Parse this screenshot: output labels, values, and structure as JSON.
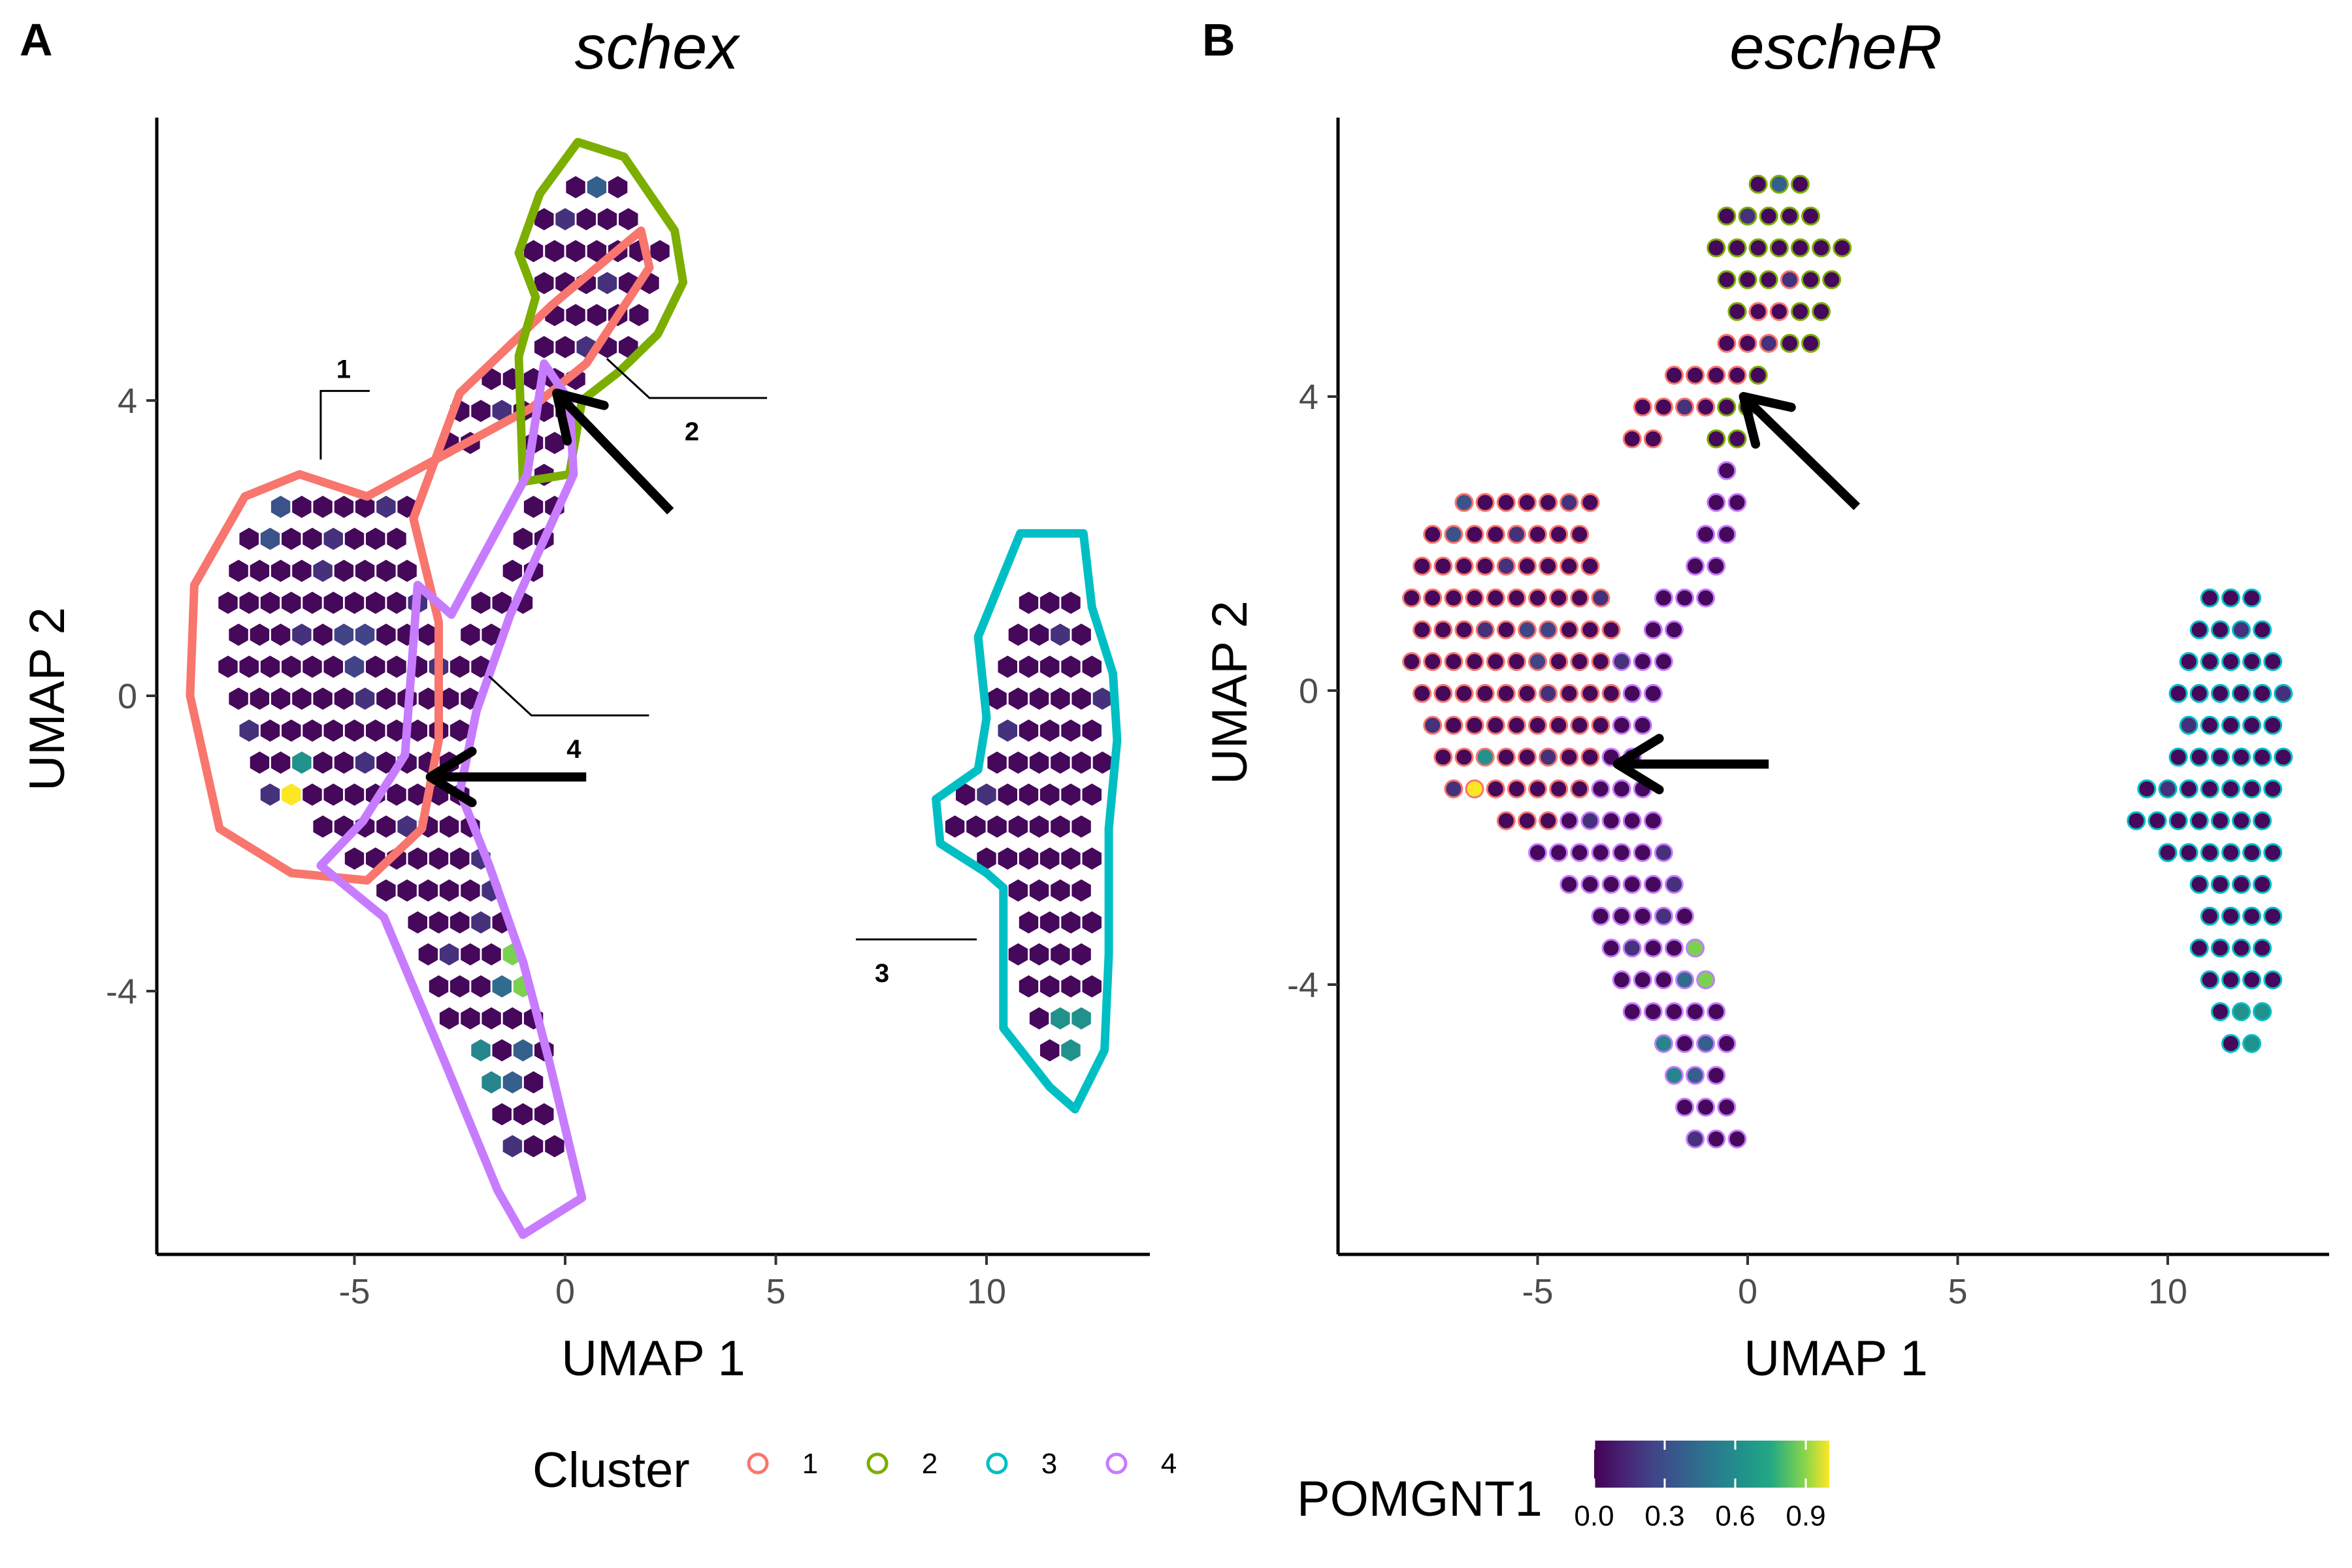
{
  "panels": [
    {
      "letter": "A",
      "title": "schex",
      "style": "hex"
    },
    {
      "letter": "B",
      "title": "escheR",
      "style": "dots"
    }
  ],
  "chart_data": {
    "type": "scatter",
    "description_type": "UMAP embedding colored by expression with cluster outlines",
    "xlabel": "UMAP 1",
    "ylabel": "UMAP 2",
    "xlim": [
      -9.5,
      14
    ],
    "ylim": [
      -7.5,
      7.5
    ],
    "x_ticks": [
      -5,
      0,
      5,
      10
    ],
    "y_ticks": [
      -4,
      0,
      4
    ],
    "x_tick_labels": [
      "-5",
      "0",
      "5",
      "10"
    ],
    "y_tick_labels": [
      "-4",
      "0",
      "4"
    ],
    "grid": false,
    "color_legend": {
      "title": "POMGNT1",
      "colormap": "viridis",
      "range": [
        0.0,
        1.0
      ],
      "tick_values": [
        0.0,
        0.3,
        0.6,
        0.9
      ],
      "tick_labels": [
        "0.0",
        "0.3",
        "0.6",
        "0.9"
      ]
    },
    "cluster_legend": {
      "title": "Cluster",
      "entries": [
        {
          "label": "1",
          "color": "#F8766D"
        },
        {
          "label": "2",
          "color": "#7CAE00"
        },
        {
          "label": "3",
          "color": "#00BFC4"
        },
        {
          "label": "4",
          "color": "#C77CFF"
        }
      ],
      "position": "bottom"
    },
    "clusters": [
      {
        "label": "1",
        "color": "#F8766D",
        "hull": [
          [
            -8.8,
            1.5
          ],
          [
            -8.9,
            0.0
          ],
          [
            -8.2,
            -1.8
          ],
          [
            -6.5,
            -2.4
          ],
          [
            -4.7,
            -2.5
          ],
          [
            -3.4,
            -1.8
          ],
          [
            -3.0,
            -0.6
          ],
          [
            -3.0,
            1.0
          ],
          [
            -3.6,
            2.4
          ],
          [
            -2.5,
            4.1
          ],
          [
            -0.3,
            5.3
          ],
          [
            1.8,
            6.3
          ],
          [
            2.0,
            5.8
          ],
          [
            0.5,
            4.5
          ],
          [
            -0.8,
            3.9
          ],
          [
            -4.7,
            2.7
          ],
          [
            -6.3,
            3.0
          ],
          [
            -7.6,
            2.7
          ]
        ],
        "label_anchor": [
          -5.8,
          3.2
        ],
        "callout_offset": "top"
      },
      {
        "label": "2",
        "color": "#7CAE00",
        "hull": [
          [
            -0.6,
            6.8
          ],
          [
            0.3,
            7.5
          ],
          [
            1.4,
            7.3
          ],
          [
            2.6,
            6.3
          ],
          [
            2.8,
            5.6
          ],
          [
            2.2,
            4.9
          ],
          [
            1.3,
            4.4
          ],
          [
            0.4,
            4.0
          ],
          [
            0.1,
            3.0
          ],
          [
            -1.0,
            2.9
          ],
          [
            -1.1,
            4.6
          ],
          [
            -0.7,
            5.4
          ],
          [
            -1.1,
            6.0
          ]
        ],
        "label_anchor": [
          2.0,
          4.3
        ],
        "callout_offset": "right"
      },
      {
        "label": "3",
        "color": "#00BFC4",
        "hull": [
          [
            9.8,
            0.8
          ],
          [
            10.8,
            2.2
          ],
          [
            12.3,
            2.2
          ],
          [
            12.5,
            1.2
          ],
          [
            13.0,
            0.3
          ],
          [
            13.1,
            -0.6
          ],
          [
            12.9,
            -1.8
          ],
          [
            12.9,
            -3.5
          ],
          [
            12.8,
            -4.8
          ],
          [
            12.1,
            -5.6
          ],
          [
            11.5,
            -5.3
          ],
          [
            10.4,
            -4.5
          ],
          [
            10.4,
            -2.6
          ],
          [
            10.0,
            -2.4
          ],
          [
            8.9,
            -2.0
          ],
          [
            8.8,
            -1.4
          ],
          [
            9.8,
            -1.0
          ],
          [
            10.0,
            -0.3
          ]
        ],
        "label_anchor": [
          10.0,
          -3.3
        ],
        "callout_offset": "left"
      },
      {
        "label": "4",
        "color": "#C77CFF",
        "hull": [
          [
            -0.9,
            3.0
          ],
          [
            -0.5,
            4.5
          ],
          [
            0.1,
            4.0
          ],
          [
            0.2,
            3.0
          ],
          [
            -1.3,
            1.1
          ],
          [
            -2.1,
            -0.2
          ],
          [
            -2.5,
            -1.3
          ],
          [
            -1.8,
            -2.3
          ],
          [
            -1.0,
            -3.6
          ],
          [
            -0.4,
            -4.9
          ],
          [
            0.4,
            -6.8
          ],
          [
            -1.0,
            -7.3
          ],
          [
            -1.6,
            -6.7
          ],
          [
            -2.9,
            -4.9
          ],
          [
            -4.3,
            -3.0
          ],
          [
            -5.8,
            -2.3
          ],
          [
            -4.8,
            -1.7
          ],
          [
            -3.8,
            -0.8
          ],
          [
            -3.5,
            1.5
          ],
          [
            -2.7,
            1.1
          ]
        ],
        "label_anchor": [
          -0.8,
          0.0
        ],
        "callout_offset": "right"
      }
    ],
    "highlights": [
      {
        "x": -6.5,
        "y": -1.6,
        "value": 1.0
      },
      {
        "x": -6.3,
        "y": -0.8,
        "value": 0.5
      },
      {
        "x": -2.1,
        "y": -5.5,
        "value": 0.95
      },
      {
        "x": -1.0,
        "y": -3.8,
        "value": 0.8
      },
      {
        "x": -1.4,
        "y": -4.0,
        "value": 0.35
      },
      {
        "x": -1.9,
        "y": -5.1,
        "value": 0.45
      },
      {
        "x": -1.1,
        "y": -5.0,
        "value": 0.3
      },
      {
        "x": 12.0,
        "y": -4.6,
        "value": 0.5
      },
      {
        "x": 0.6,
        "y": 6.9,
        "value": 0.3
      },
      {
        "x": -2.6,
        "y": -5.0,
        "value": 0.3
      },
      {
        "x": -7.0,
        "y": 2.3,
        "value": 0.25
      },
      {
        "x": -5.0,
        "y": 0.6,
        "value": 0.2
      }
    ],
    "arrows": [
      {
        "panel": 0,
        "from": [
          2.5,
          2.5
        ],
        "to": [
          -0.2,
          4.1
        ]
      },
      {
        "panel": 0,
        "from": [
          0.5,
          -1.1
        ],
        "to": [
          -3.2,
          -1.1
        ]
      },
      {
        "panel": 1,
        "from": [
          2.6,
          2.5
        ],
        "to": [
          -0.1,
          4.0
        ]
      },
      {
        "panel": 1,
        "from": [
          0.5,
          -1.0
        ],
        "to": [
          -3.1,
          -1.0
        ]
      }
    ]
  }
}
